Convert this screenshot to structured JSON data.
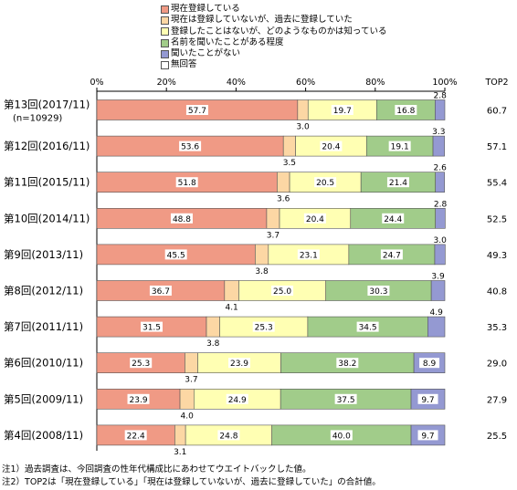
{
  "chart_data": {
    "type": "bar",
    "orientation": "horizontal",
    "stacked": true,
    "categories": [
      "第13回(2017/11)",
      "第12回(2016/11)",
      "第11回(2015/11)",
      "第10回(2014/11)",
      "第9回(2013/11)",
      "第8回(2012/11)",
      "第7回(2011/11)",
      "第6回(2010/11)",
      "第5回(2009/11)",
      "第4回(2008/11)"
    ],
    "first_category_sublabel": "(n=10929)",
    "series": [
      {
        "name": "現在登録している",
        "color": "#f09a85",
        "values": [
          57.7,
          53.6,
          51.8,
          48.8,
          45.5,
          36.7,
          31.5,
          25.3,
          23.9,
          22.4
        ]
      },
      {
        "name": "現在は登録していないが、過去に登録していた",
        "color": "#fcd7a4",
        "values": [
          3.0,
          3.5,
          3.6,
          3.7,
          3.8,
          4.1,
          3.8,
          3.7,
          4.0,
          3.1
        ]
      },
      {
        "name": "登録したことはないが、どのようなものかは知っている",
        "color": "#ffffb3",
        "values": [
          19.7,
          20.4,
          20.5,
          20.4,
          23.1,
          25.0,
          25.3,
          23.9,
          24.9,
          24.8
        ]
      },
      {
        "name": "名前を聞いたことがある程度",
        "color": "#a1cc8a",
        "values": [
          16.8,
          19.1,
          21.4,
          24.4,
          24.7,
          30.3,
          34.5,
          38.2,
          37.5,
          40.0
        ]
      },
      {
        "name": "聞いたことがない",
        "color": "#9499d2",
        "values": [
          2.8,
          3.3,
          2.6,
          2.8,
          3.0,
          3.9,
          4.9,
          8.9,
          9.7,
          9.7
        ]
      },
      {
        "name": "無回答",
        "color": "#ffffff",
        "values": [
          0,
          0,
          0,
          0,
          0,
          0,
          0,
          0,
          0,
          0
        ]
      }
    ],
    "top2_label": "TOP2",
    "top2_values": [
      60.7,
      57.1,
      55.4,
      52.5,
      49.3,
      40.8,
      35.3,
      29.0,
      27.9,
      25.5
    ],
    "x_ticks": [
      "0%",
      "20%",
      "40%",
      "60%",
      "80%",
      "100%"
    ],
    "xlim": [
      0,
      100
    ]
  },
  "notes": [
    "注1）過去調査は、今回調査の性年代構成比にあわせてウエイトバックした値。",
    "注2）TOP2は「現在登録している」「現在は登録していないが、過去に登録していた」の合計値。"
  ]
}
